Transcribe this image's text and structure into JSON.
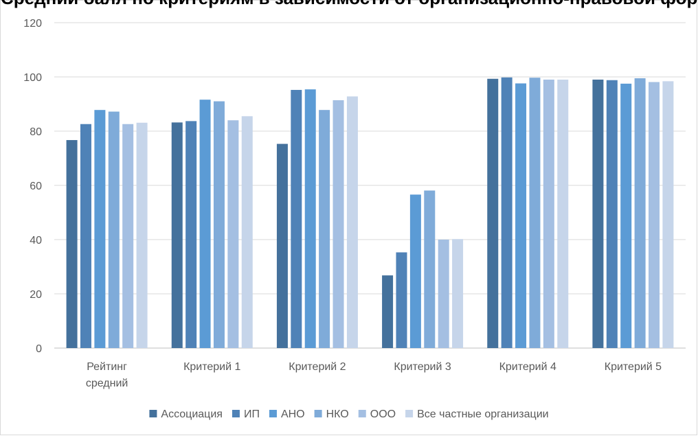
{
  "chart_data": {
    "type": "bar",
    "title": "Средний балл по критериям в зависимости от организационно-правовой формы",
    "xlabel": "",
    "ylabel": "",
    "ylim": [
      0,
      120
    ],
    "yticks": [
      0,
      20,
      40,
      60,
      80,
      100,
      120
    ],
    "grid": true,
    "legend_position": "bottom",
    "categories": [
      "Рейтинг средний",
      "Критерий 1",
      "Критерий 2",
      "Критерий 3",
      "Критерий 4",
      "Критерий 5"
    ],
    "series": [
      {
        "name": "Ассоциация",
        "color": "#44719c",
        "values": [
          76.7,
          83.2,
          75.3,
          26.8,
          99.3,
          99.0
        ]
      },
      {
        "name": "ИП",
        "color": "#4f82b7",
        "values": [
          82.6,
          83.7,
          95.2,
          35.3,
          99.8,
          98.8
        ]
      },
      {
        "name": "АНО",
        "color": "#5b9bd5",
        "values": [
          87.8,
          91.6,
          95.4,
          56.6,
          97.6,
          97.5
        ]
      },
      {
        "name": "НКО",
        "color": "#7fabd9",
        "values": [
          87.2,
          91.0,
          87.8,
          58.1,
          99.7,
          99.5
        ]
      },
      {
        "name": "ООО",
        "color": "#a4bfe2",
        "values": [
          82.6,
          84.0,
          91.4,
          40.0,
          99.0,
          98.1
        ]
      },
      {
        "name": "Все частные организации",
        "color": "#c6d5ea",
        "values": [
          83.1,
          85.5,
          92.8,
          40.2,
          99.0,
          98.4
        ]
      }
    ]
  }
}
